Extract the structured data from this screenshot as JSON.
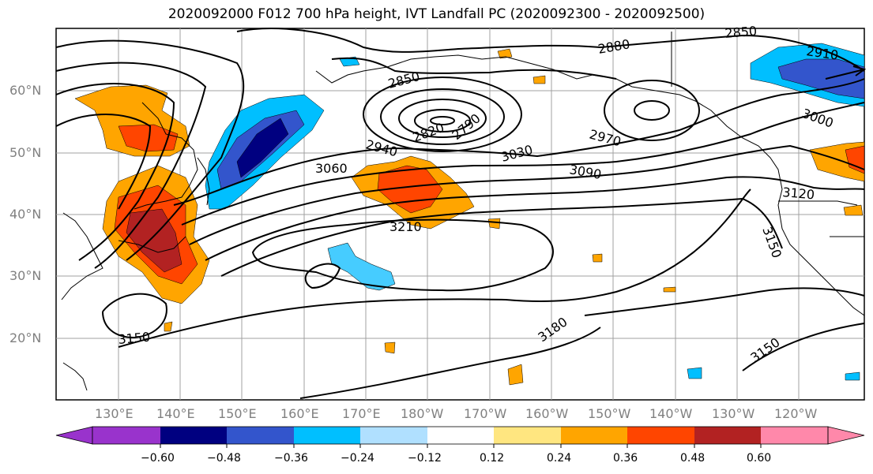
{
  "title": "2020092000 F012 700 hPa height, IVT Landfall PC (2020092300 - 2020092500)",
  "lat_labels": [
    "60°N",
    "50°N",
    "40°N",
    "30°N",
    "20°N"
  ],
  "lon_labels": [
    "130°E",
    "140°E",
    "150°E",
    "160°E",
    "170°E",
    "180°W",
    "170°W",
    "160°W",
    "150°W",
    "140°W",
    "130°W",
    "120°W"
  ],
  "contour_labels": [
    "2880",
    "2910",
    "2850",
    "2970",
    "3000",
    "2940",
    "3030",
    "3090",
    "3060",
    "3120",
    "3210",
    "3150",
    "3180",
    "3150",
    "3150",
    "2850",
    "2790",
    "2820"
  ],
  "colorbar": {
    "ticks": [
      "−0.60",
      "−0.48",
      "−0.36",
      "−0.24",
      "−0.12",
      "0.12",
      "0.24",
      "0.36",
      "0.48",
      "0.60"
    ],
    "colors": [
      "#9933cc",
      "#000080",
      "#3355cc",
      "#00bfff",
      "#b0e0ff",
      "#ffffff",
      "#ffe680",
      "#ffa500",
      "#ff4500",
      "#b22222",
      "#ff88aa"
    ]
  },
  "colors": {
    "negative_strong": "#2a2ab0",
    "negative": "#00bfff",
    "positive": "#ffa500",
    "positive_strong": "#b22222"
  }
}
